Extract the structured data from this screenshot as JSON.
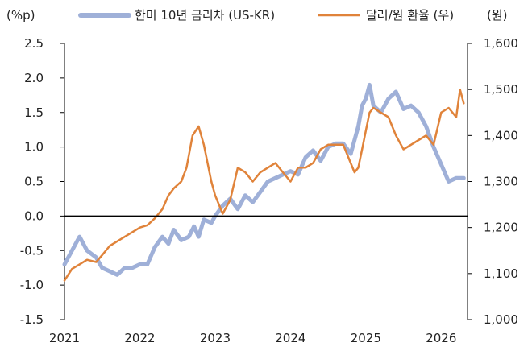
{
  "chart_data": {
    "type": "line",
    "title": "",
    "left_axis": {
      "label": "(%p)",
      "min": -1.5,
      "max": 2.5,
      "ticks": [
        -1.5,
        -1.0,
        -0.5,
        0.0,
        0.5,
        1.0,
        1.5,
        2.0,
        2.5
      ],
      "tick_labels": [
        "-1.5",
        "-1.0",
        "-0.5",
        "0.0",
        "0.5",
        "1.0",
        "1.5",
        "2.0",
        "2.5"
      ]
    },
    "right_axis": {
      "label": "(원)",
      "min": 1000,
      "max": 1600,
      "ticks": [
        1000,
        1100,
        1200,
        1300,
        1400,
        1500,
        1600
      ],
      "tick_labels": [
        "1,000",
        "1,100",
        "1,200",
        "1,300",
        "1,400",
        "1,500",
        "1,600"
      ]
    },
    "x_axis": {
      "min": 2021.0,
      "max": 2026.35,
      "ticks": [
        2021,
        2022,
        2023,
        2024,
        2025,
        2026
      ],
      "tick_labels": [
        "2021",
        "2022",
        "2023",
        "2024",
        "2025",
        "2026"
      ]
    },
    "legend_position": "top",
    "series": [
      {
        "name": "한미 10년 금리차 (US-KR)",
        "axis": "left",
        "color": "#9fb0d8",
        "x": [
          2021.0,
          2021.1,
          2021.2,
          2021.3,
          2021.42,
          2021.5,
          2021.6,
          2021.7,
          2021.8,
          2021.9,
          2022.0,
          2022.1,
          2022.2,
          2022.3,
          2022.38,
          2022.45,
          2022.55,
          2022.65,
          2022.72,
          2022.78,
          2022.85,
          2022.95,
          2023.0,
          2023.1,
          2023.2,
          2023.3,
          2023.4,
          2023.5,
          2023.6,
          2023.7,
          2023.8,
          2023.9,
          2024.0,
          2024.1,
          2024.2,
          2024.3,
          2024.4,
          2024.5,
          2024.6,
          2024.7,
          2024.8,
          2024.9,
          2024.95,
          2025.0,
          2025.05,
          2025.1,
          2025.2,
          2025.3,
          2025.4,
          2025.5,
          2025.6,
          2025.7,
          2025.8,
          2025.9,
          2026.0,
          2026.1,
          2026.2,
          2026.3
        ],
        "values": [
          -0.7,
          -0.5,
          -0.3,
          -0.5,
          -0.6,
          -0.75,
          -0.8,
          -0.85,
          -0.75,
          -0.75,
          -0.7,
          -0.7,
          -0.45,
          -0.3,
          -0.4,
          -0.2,
          -0.35,
          -0.3,
          -0.15,
          -0.3,
          -0.05,
          -0.1,
          0.0,
          0.15,
          0.25,
          0.1,
          0.3,
          0.2,
          0.35,
          0.5,
          0.55,
          0.6,
          0.65,
          0.6,
          0.85,
          0.95,
          0.8,
          1.0,
          1.05,
          1.05,
          0.9,
          1.3,
          1.6,
          1.7,
          1.9,
          1.6,
          1.5,
          1.7,
          1.8,
          1.55,
          1.6,
          1.5,
          1.3,
          1.0,
          0.75,
          0.5,
          0.55,
          0.55
        ]
      },
      {
        "name": "달러/원 환율 (우)",
        "axis": "right",
        "color": "#e0833a",
        "x": [
          2021.0,
          2021.1,
          2021.2,
          2021.3,
          2021.42,
          2021.5,
          2021.6,
          2021.7,
          2021.8,
          2021.9,
          2022.0,
          2022.1,
          2022.2,
          2022.3,
          2022.38,
          2022.45,
          2022.55,
          2022.62,
          2022.7,
          2022.78,
          2022.85,
          2022.95,
          2023.0,
          2023.1,
          2023.2,
          2023.3,
          2023.4,
          2023.5,
          2023.6,
          2023.7,
          2023.8,
          2023.9,
          2024.0,
          2024.1,
          2024.2,
          2024.3,
          2024.4,
          2024.5,
          2024.6,
          2024.7,
          2024.8,
          2024.85,
          2024.9,
          2024.95,
          2025.0,
          2025.05,
          2025.1,
          2025.2,
          2025.3,
          2025.4,
          2025.5,
          2025.6,
          2025.7,
          2025.8,
          2025.9,
          2026.0,
          2026.1,
          2026.2,
          2026.25,
          2026.3
        ],
        "values": [
          1085,
          1110,
          1120,
          1130,
          1125,
          1140,
          1160,
          1170,
          1180,
          1190,
          1200,
          1205,
          1220,
          1240,
          1270,
          1285,
          1300,
          1330,
          1400,
          1420,
          1380,
          1300,
          1270,
          1230,
          1260,
          1330,
          1320,
          1300,
          1320,
          1330,
          1340,
          1320,
          1300,
          1330,
          1330,
          1340,
          1370,
          1380,
          1380,
          1380,
          1340,
          1320,
          1330,
          1370,
          1410,
          1450,
          1460,
          1450,
          1440,
          1400,
          1370,
          1380,
          1390,
          1400,
          1380,
          1450,
          1460,
          1440,
          1500,
          1470
        ]
      }
    ],
    "zero_line": true
  }
}
